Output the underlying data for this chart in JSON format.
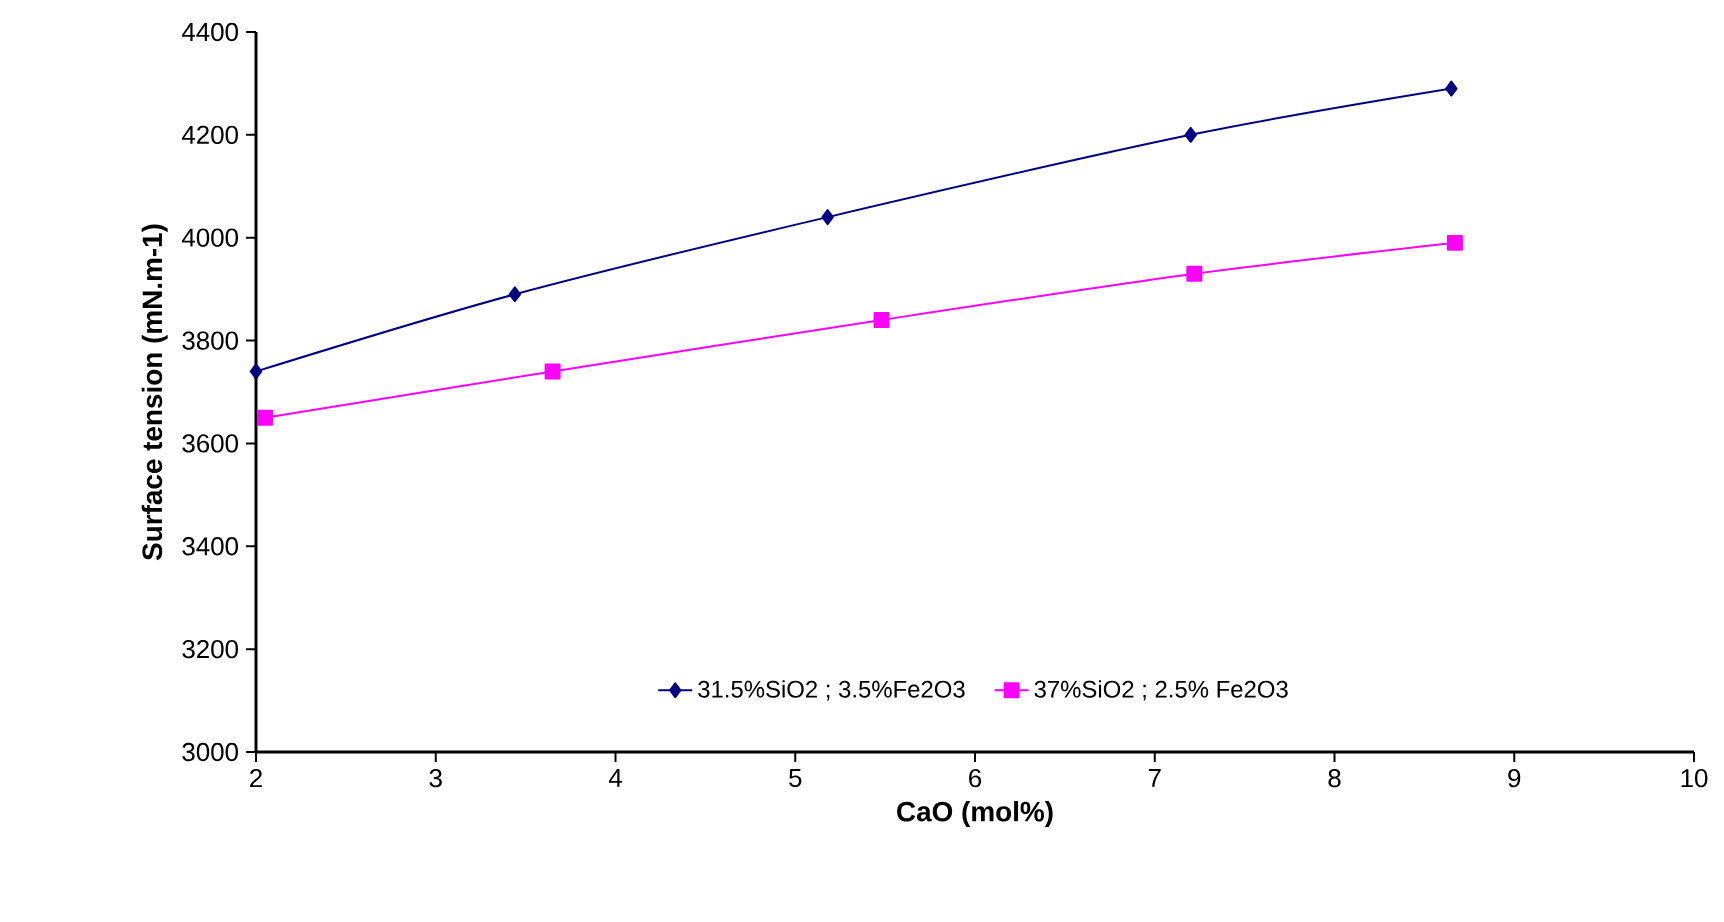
{
  "chart_data": {
    "type": "line",
    "xlabel": "CaO (mol%)",
    "ylabel": "Surface tension (mN.m-1)",
    "xlim": [
      2,
      10
    ],
    "xticks": [
      2,
      3,
      4,
      5,
      6,
      7,
      8,
      9,
      10
    ],
    "ylim": [
      3000,
      4400
    ],
    "yticks": [
      3000,
      3200,
      3400,
      3600,
      3800,
      4000,
      4200,
      4400
    ],
    "grid": false,
    "legend": "bottom",
    "series": [
      {
        "name": "31.5%SiO2 ; 3.5%Fe2O3",
        "color": "#000080",
        "marker": "diamond",
        "x": [
          2,
          3.44,
          5.18,
          7.2,
          8.65
        ],
        "values": [
          3740,
          3890,
          4040,
          4200,
          4290
        ]
      },
      {
        "name": "37%SiO2 ; 2.5% Fe2O3",
        "color": "#ff00ff",
        "marker": "square",
        "x": [
          2.05,
          3.65,
          5.48,
          7.22,
          8.67
        ],
        "values": [
          3650,
          3740,
          3840,
          3930,
          3990
        ]
      }
    ]
  }
}
